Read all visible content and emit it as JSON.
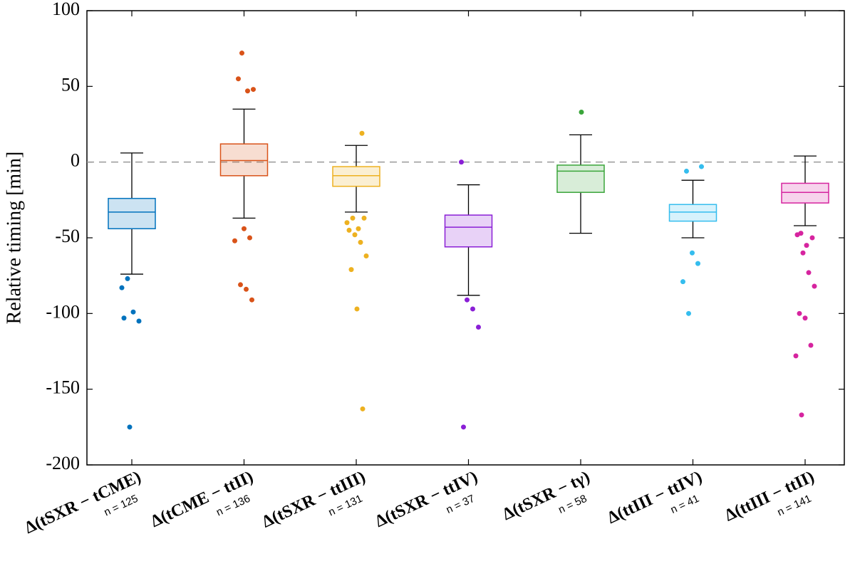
{
  "chart_data": {
    "type": "box",
    "y_label": "Relative timing [min]",
    "ylim": [
      -200,
      100
    ],
    "yticks": [
      100,
      50,
      0,
      -50,
      -100,
      -150,
      -200
    ],
    "reference_line": 0,
    "categories": [
      "Δ(tSXR − tCME)",
      "Δ(tCME − ttII)",
      "Δ(tSXR − ttIII)",
      "Δ(tSXR − ttIV)",
      "Δ(tSXR − tγ)",
      "Δ(ttIII − ttIV)",
      "Δ(ttIII − ttII)"
    ],
    "counts": [
      "n = 125",
      "n = 136",
      "n = 131",
      "n = 37",
      "n = 58",
      "n = 41",
      "n = 141"
    ],
    "boxes": [
      {
        "color": "#0072bd",
        "whisker_low": -74,
        "q1": -44,
        "median": -33,
        "q3": -24,
        "whisker_high": 6,
        "outliers": [
          -83,
          -77,
          -99,
          -105,
          -103,
          -175
        ]
      },
      {
        "color": "#d95319",
        "whisker_low": -37,
        "q1": -9,
        "median": 1,
        "q3": 12,
        "whisker_high": 35,
        "outliers": [
          72,
          47,
          48,
          55,
          -44,
          -50,
          -52,
          -81,
          -84,
          -91
        ]
      },
      {
        "color": "#edb120",
        "whisker_low": -33,
        "q1": -16,
        "median": -9,
        "q3": -3,
        "whisker_high": 11,
        "outliers": [
          19,
          -40,
          -37,
          -44,
          -37,
          -45,
          -48,
          -53,
          -62,
          -71,
          -97,
          -163
        ]
      },
      {
        "color": "#8a1fd6",
        "whisker_low": -88,
        "q1": -56,
        "median": -43,
        "q3": -35,
        "whisker_high": -15,
        "outliers": [
          0,
          -91,
          -97,
          -109,
          -175
        ]
      },
      {
        "color": "#3aa53a",
        "whisker_low": -47,
        "q1": -20,
        "median": -6,
        "q3": -2,
        "whisker_high": 18,
        "outliers": [
          33
        ]
      },
      {
        "color": "#35bdee",
        "whisker_low": -50,
        "q1": -39,
        "median": -33,
        "q3": -28,
        "whisker_high": -12,
        "outliers": [
          -3,
          -6,
          -60,
          -67,
          -79,
          -100
        ]
      },
      {
        "color": "#d6249f",
        "whisker_low": -42,
        "q1": -27,
        "median": -20,
        "q3": -14,
        "whisker_high": 4,
        "outliers": [
          -47,
          -55,
          -50,
          -48,
          -60,
          -73,
          -82,
          -100,
          -103,
          -121,
          -128,
          -167
        ]
      }
    ]
  }
}
